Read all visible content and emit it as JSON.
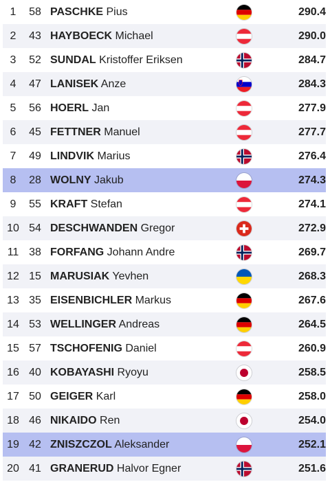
{
  "rows": [
    {
      "rank": "1",
      "bib": "58",
      "surname": "PASCHKE",
      "first": "Pius",
      "country": "germany-flag-icon",
      "points": "290.4",
      "highlight": false
    },
    {
      "rank": "2",
      "bib": "43",
      "surname": "HAYBOECK",
      "first": "Michael",
      "country": "austria-flag-icon",
      "points": "290.0",
      "highlight": false
    },
    {
      "rank": "3",
      "bib": "52",
      "surname": "SUNDAL",
      "first": "Kristoffer Eriksen",
      "country": "norway-flag-icon",
      "points": "284.7",
      "highlight": false
    },
    {
      "rank": "4",
      "bib": "47",
      "surname": "LANISEK",
      "first": "Anze",
      "country": "slovenia-flag-icon",
      "points": "284.3",
      "highlight": false
    },
    {
      "rank": "5",
      "bib": "56",
      "surname": "HOERL",
      "first": "Jan",
      "country": "austria-flag-icon",
      "points": "277.9",
      "highlight": false
    },
    {
      "rank": "6",
      "bib": "45",
      "surname": "FETTNER",
      "first": "Manuel",
      "country": "austria-flag-icon",
      "points": "277.7",
      "highlight": false
    },
    {
      "rank": "7",
      "bib": "49",
      "surname": "LINDVIK",
      "first": "Marius",
      "country": "norway-flag-icon",
      "points": "276.4",
      "highlight": false
    },
    {
      "rank": "8",
      "bib": "28",
      "surname": "WOLNY",
      "first": "Jakub",
      "country": "poland-flag-icon",
      "points": "274.3",
      "highlight": true
    },
    {
      "rank": "9",
      "bib": "55",
      "surname": "KRAFT",
      "first": "Stefan",
      "country": "austria-flag-icon",
      "points": "274.1",
      "highlight": false
    },
    {
      "rank": "10",
      "bib": "54",
      "surname": "DESCHWANDEN",
      "first": "Gregor",
      "country": "switzerland-flag-icon",
      "points": "272.9",
      "highlight": false
    },
    {
      "rank": "11",
      "bib": "38",
      "surname": "FORFANG",
      "first": "Johann Andre",
      "country": "norway-flag-icon",
      "points": "269.7",
      "highlight": false
    },
    {
      "rank": "12",
      "bib": "15",
      "surname": "MARUSIAK",
      "first": "Yevhen",
      "country": "ukraine-flag-icon",
      "points": "268.3",
      "highlight": false
    },
    {
      "rank": "13",
      "bib": "35",
      "surname": "EISENBICHLER",
      "first": "Markus",
      "country": "germany-flag-icon",
      "points": "267.6",
      "highlight": false
    },
    {
      "rank": "14",
      "bib": "53",
      "surname": "WELLINGER",
      "first": "Andreas",
      "country": "germany-flag-icon",
      "points": "264.5",
      "highlight": false
    },
    {
      "rank": "15",
      "bib": "57",
      "surname": "TSCHOFENIG",
      "first": "Daniel",
      "country": "austria-flag-icon",
      "points": "260.9",
      "highlight": false
    },
    {
      "rank": "16",
      "bib": "40",
      "surname": "KOBAYASHI",
      "first": "Ryoyu",
      "country": "japan-flag-icon",
      "points": "258.5",
      "highlight": false
    },
    {
      "rank": "17",
      "bib": "50",
      "surname": "GEIGER",
      "first": "Karl",
      "country": "germany-flag-icon",
      "points": "258.0",
      "highlight": false
    },
    {
      "rank": "18",
      "bib": "46",
      "surname": "NIKAIDO",
      "first": "Ren",
      "country": "japan-flag-icon",
      "points": "254.0",
      "highlight": false
    },
    {
      "rank": "19",
      "bib": "42",
      "surname": "ZNISZCZOL",
      "first": "Aleksander",
      "country": "poland-flag-icon",
      "points": "252.1",
      "highlight": true
    },
    {
      "rank": "20",
      "bib": "41",
      "surname": "GRANERUD",
      "first": "Halvor Egner",
      "country": "norway-flag-icon",
      "points": "251.6",
      "highlight": false
    }
  ],
  "colors": {
    "highlight": "#b6bff1",
    "stripe": "#f1f2f7",
    "text": "#222222"
  }
}
